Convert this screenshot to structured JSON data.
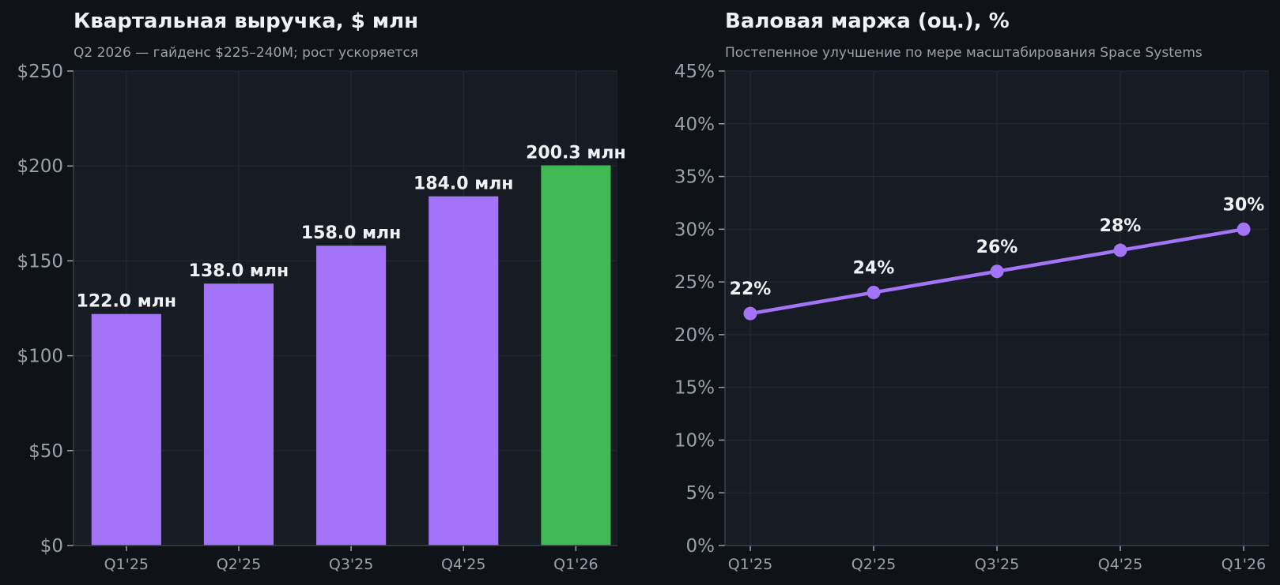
{
  "colors": {
    "page_bg": "#0f1317",
    "plot_bg": "#171b23",
    "grid": "#262b34",
    "axis": "#3a404a",
    "bar": "#a373f8",
    "bar_highlight": "#40b955",
    "line": "#a373f8",
    "text": "#f0f2f5",
    "muted": "#9aa1ab"
  },
  "chart_data": [
    {
      "type": "bar",
      "title": "Квартальная выручка, $ млн",
      "subtitle": "Q2 2026 — гайденс $225–240M; рост ускоряется",
      "categories": [
        "Q1'25",
        "Q2'25",
        "Q3'25",
        "Q4'25",
        "Q1'26"
      ],
      "values": [
        122.0,
        138.0,
        158.0,
        184.0,
        200.3
      ],
      "data_labels": [
        "122.0 млн",
        "138.0 млн",
        "158.0 млн",
        "184.0 млн",
        "200.3 млн"
      ],
      "highlight_index": 4,
      "ylim": [
        0,
        250
      ],
      "yticks": [
        0,
        50,
        100,
        150,
        200,
        250
      ],
      "ytick_labels": [
        "$0",
        "$50",
        "$100",
        "$150",
        "$200",
        "$250"
      ],
      "xlabel": "",
      "ylabel": "",
      "grid": true
    },
    {
      "type": "line",
      "title": "Валовая маржа (оц.), %",
      "subtitle": "Постепенное улучшение по мере масштабирования Space Systems",
      "categories": [
        "Q1'25",
        "Q2'25",
        "Q3'25",
        "Q4'25",
        "Q1'26"
      ],
      "values": [
        22,
        24,
        26,
        28,
        30
      ],
      "data_labels": [
        "22%",
        "24%",
        "26%",
        "28%",
        "30%"
      ],
      "ylim": [
        0,
        45
      ],
      "yticks": [
        0,
        5,
        10,
        15,
        20,
        25,
        30,
        35,
        40,
        45
      ],
      "ytick_labels": [
        "0%",
        "5%",
        "10%",
        "15%",
        "20%",
        "25%",
        "30%",
        "35%",
        "40%",
        "45%"
      ],
      "xlabel": "",
      "ylabel": "",
      "grid": true
    }
  ]
}
